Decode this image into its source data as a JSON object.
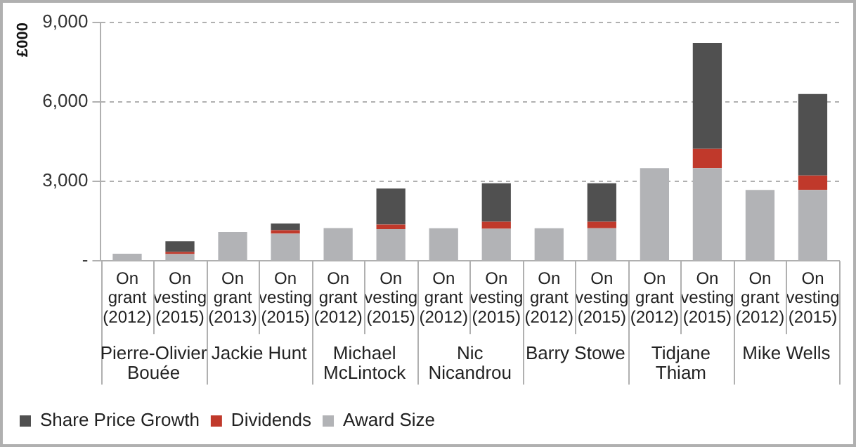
{
  "chart_data": {
    "type": "bar",
    "stacked": true,
    "ylabel": "£000",
    "categories": [
      "On grant (2012)",
      "On vesting (2015)",
      "On grant (2013)",
      "On vesting (2015)",
      "On grant (2012)",
      "On vesting (2015)",
      "On grant (2012)",
      "On vesting (2015)",
      "On grant (2012)",
      "On vesting (2015)",
      "On grant (2012)",
      "On vesting (2015)",
      "On grant (2012)",
      "On vesting (2015)"
    ],
    "series": [
      {
        "name": "Award Size",
        "color": "#b2b3b6",
        "values": [
          270,
          260,
          1090,
          1030,
          1240,
          1200,
          1230,
          1210,
          1230,
          1230,
          3500,
          3500,
          2680,
          2680
        ]
      },
      {
        "name": "Dividends",
        "color": "#c0392b",
        "values": [
          null,
          80,
          null,
          130,
          null,
          170,
          null,
          270,
          null,
          250,
          null,
          730,
          null,
          540
        ]
      },
      {
        "name": "Share Price Growth",
        "color": "#505050",
        "values": [
          null,
          400,
          null,
          250,
          null,
          1360,
          null,
          1450,
          null,
          1450,
          null,
          4000,
          null,
          3080
        ]
      }
    ],
    "annotations": [
      "Pierre-Olivier Bouée",
      "Jackie Hunt",
      "Michael McLintock",
      "Nic Nicandrou",
      "Barry Stowe",
      "Tidjane Thiam",
      "Mike Wells"
    ],
    "ylim": [
      0,
      9000
    ],
    "yticks": [
      {
        "value": 0,
        "label": "-"
      },
      {
        "value": 3000,
        "label": "3,000"
      },
      {
        "value": 6000,
        "label": "6,000"
      },
      {
        "value": 9000,
        "label": "9,000"
      }
    ],
    "grid": "y",
    "legend": "bottom"
  }
}
